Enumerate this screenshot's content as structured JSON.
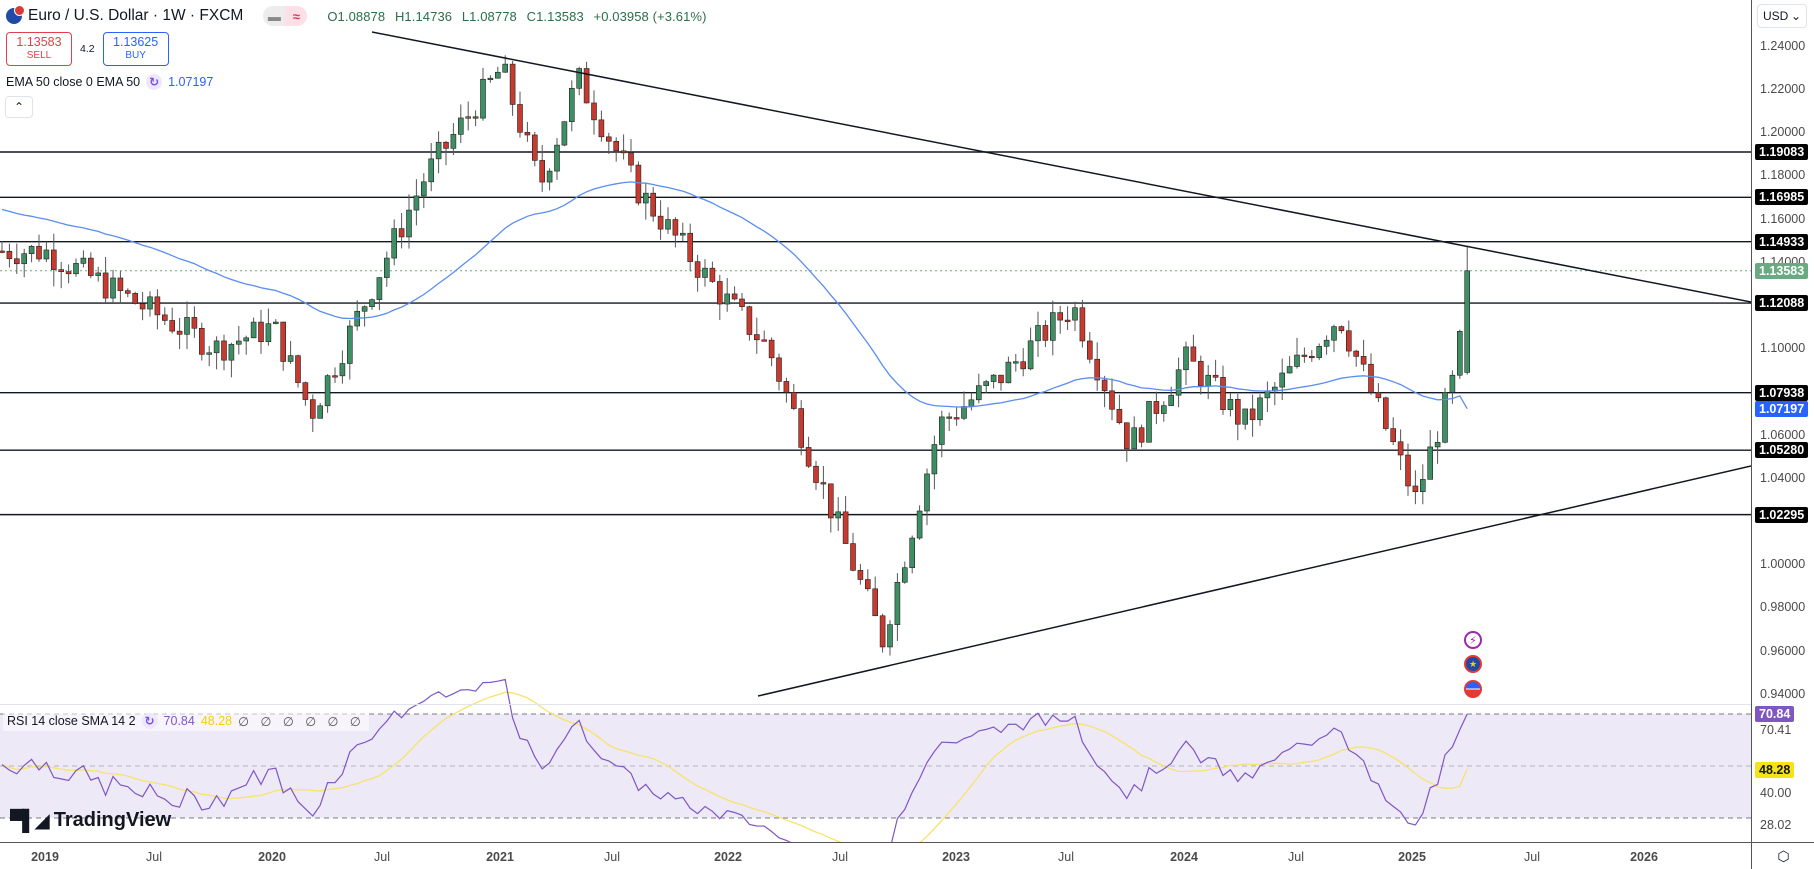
{
  "header": {
    "title": "Euro / U.S. Dollar · 1W · FXCM",
    "ohlc": {
      "open": "O1.08878",
      "high": "H1.14736",
      "low": "L1.08778",
      "close": "C1.13583",
      "change": "+0.03958 (+3.61%)"
    },
    "toggle_icons": [
      "minus-icon",
      "approx-icon"
    ]
  },
  "trade": {
    "sell_price": "1.13583",
    "sell_label": "SELL",
    "spread": "4.2",
    "buy_price": "1.13625",
    "buy_label": "BUY"
  },
  "indicators": {
    "ema": {
      "label": "EMA 50 close 0 EMA 50",
      "value": "1.07197",
      "color": "#2962ff"
    },
    "rsi": {
      "label": "RSI 14 close SMA 14 2",
      "rsi_value": "70.84",
      "sma_value": "48.28",
      "extra": "∅ ∅ ∅ ∅ ∅ ∅"
    }
  },
  "price_axis": {
    "currency": "USD",
    "ticks": [
      "1.24000",
      "1.22000",
      "1.20000",
      "1.18000",
      "1.16000",
      "1.14000",
      "1.10000",
      "1.06000",
      "1.04000",
      "1.00000",
      "0.98000",
      "0.96000",
      "0.94000"
    ],
    "tags": [
      {
        "label": "1.19083",
        "color": "#000000"
      },
      {
        "label": "1.16985",
        "color": "#000000"
      },
      {
        "label": "1.14933",
        "color": "#000000"
      },
      {
        "label": "1.13583",
        "color": "#6aaa82"
      },
      {
        "label": "1.12088",
        "color": "#000000"
      },
      {
        "label": "1.07938",
        "color": "#000000"
      },
      {
        "label": "1.07197",
        "color": "#2962ff"
      },
      {
        "label": "1.05280",
        "color": "#000000"
      },
      {
        "label": "1.02295",
        "color": "#000000"
      }
    ]
  },
  "rsi_axis": {
    "ticks": [
      "70.41",
      "40.00",
      "28.02"
    ],
    "tags": [
      {
        "label": "70.84",
        "color": "#7e57c2"
      },
      {
        "label": "48.28",
        "color": "#f5e316"
      }
    ]
  },
  "time_axis": {
    "labels": [
      "2019",
      "Jul",
      "2020",
      "Jul",
      "2021",
      "Jul",
      "2022",
      "Jul",
      "2023",
      "Jul",
      "2024",
      "Jul",
      "2025",
      "Jul",
      "2026"
    ]
  },
  "events": [
    "lightning-event-icon",
    "eu-flag-event-icon",
    "us-flag-event-icon"
  ],
  "branding": {
    "logo_text": "TradingView"
  },
  "colors": {
    "bull": "#3e8f63",
    "bear": "#c63a2f",
    "ema": "#5b8def",
    "rsi": "#7e57c2",
    "rsi_sma": "#f7e36c",
    "rsi_band": "#ede9f7"
  },
  "chart_data": {
    "type": "candlestick",
    "title": "Euro / U.S. Dollar · 1W · FXCM",
    "xlabel": "",
    "ylabel": "USD",
    "ylim": [
      0.93,
      1.245
    ],
    "x_ticks": [
      "2019",
      "Jul",
      "2020",
      "Jul",
      "2021",
      "Jul",
      "2022",
      "Jul",
      "2023",
      "Jul",
      "2024",
      "Jul",
      "2025",
      "Jul",
      "2026"
    ],
    "horizontal_levels": [
      1.19083,
      1.16985,
      1.14933,
      1.12088,
      1.07938,
      1.0528,
      1.02295
    ],
    "last_price": 1.13583,
    "trendlines": [
      {
        "name": "descending resistance",
        "from": [
          "2020-06",
          1.247
        ],
        "to": [
          "2025-08",
          1.121
        ]
      },
      {
        "name": "ascending support",
        "from": [
          "2022-05",
          0.943
        ],
        "to": [
          "2025-08",
          1.061
        ]
      }
    ],
    "price_path_approx": [
      {
        "date": "2019-01",
        "close": 1.145
      },
      {
        "date": "2019-07",
        "close": 1.115
      },
      {
        "date": "2019-10",
        "close": 1.1
      },
      {
        "date": "2020-01",
        "close": 1.11
      },
      {
        "date": "2020-03",
        "close": 1.07
      },
      {
        "date": "2020-06",
        "close": 1.125
      },
      {
        "date": "2020-09",
        "close": 1.18
      },
      {
        "date": "2021-01",
        "close": 1.23
      },
      {
        "date": "2021-03",
        "close": 1.175
      },
      {
        "date": "2021-05",
        "close": 1.225
      },
      {
        "date": "2021-08",
        "close": 1.175
      },
      {
        "date": "2021-12",
        "close": 1.13
      },
      {
        "date": "2022-03",
        "close": 1.1
      },
      {
        "date": "2022-07",
        "close": 1.01
      },
      {
        "date": "2022-09",
        "close": 0.965
      },
      {
        "date": "2022-12",
        "close": 1.065
      },
      {
        "date": "2023-03",
        "close": 1.085
      },
      {
        "date": "2023-07",
        "close": 1.12
      },
      {
        "date": "2023-10",
        "close": 1.055
      },
      {
        "date": "2024-01",
        "close": 1.095
      },
      {
        "date": "2024-04",
        "close": 1.065
      },
      {
        "date": "2024-09",
        "close": 1.115
      },
      {
        "date": "2025-01",
        "close": 1.03
      },
      {
        "date": "2025-03",
        "close": 1.085
      },
      {
        "date": "2025-04",
        "close": 1.13583
      }
    ],
    "ema50": {
      "last": 1.07197
    },
    "rsi": {
      "last": 70.84,
      "sma_last": 48.28,
      "bands": [
        70,
        50,
        30
      ],
      "axis_ticks": [
        70.41,
        40.0,
        28.02
      ]
    }
  }
}
